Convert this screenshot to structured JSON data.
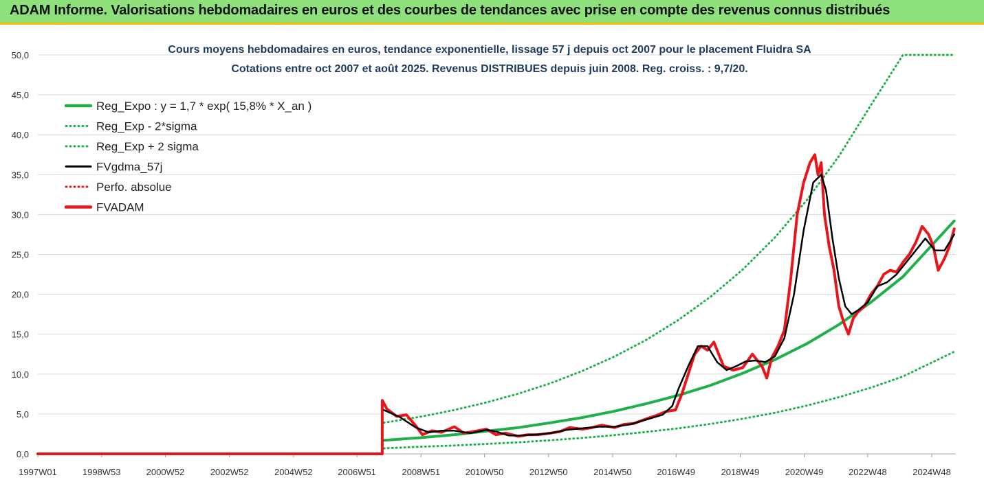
{
  "header": {
    "title": "ADAM Informe. Valorisations hebdomadaires en euros et des courbes de tendances avec prise en compte des revenus connus distribués",
    "background_color": "#8ee07a",
    "accent_color": "#f2c200"
  },
  "chart_data": {
    "type": "line",
    "title_line1": "Cours moyens hebdomadaires en euros, tendance exponentielle, lissage 57 j depuis oct 2007 pour le placement Fluidra SA",
    "title_line2": "Cotations entre oct 2007 et août 2025.  Revenus DISTRIBUES depuis juin 2008.  Reg. croiss. : 9,7/20.",
    "xlabel": "",
    "ylabel": "",
    "ylim": [
      0,
      50
    ],
    "y_ticks": [
      "0,0",
      "5,0",
      "10,0",
      "15,0",
      "20,0",
      "25,0",
      "30,0",
      "35,0",
      "40,0",
      "45,0",
      "50,0"
    ],
    "x_ticks": [
      {
        "label": "1997W01",
        "x": 1997.0
      },
      {
        "label": "1998W53",
        "x": 1998.99
      },
      {
        "label": "2000W52",
        "x": 2000.98
      },
      {
        "label": "2002W52",
        "x": 2002.98
      },
      {
        "label": "2004W52",
        "x": 2004.98
      },
      {
        "label": "2006W51",
        "x": 2006.96
      },
      {
        "label": "2008W51",
        "x": 2008.96
      },
      {
        "label": "2010W50",
        "x": 2010.94
      },
      {
        "label": "2012W50",
        "x": 2012.94
      },
      {
        "label": "2014W50",
        "x": 2014.94
      },
      {
        "label": "2016W49",
        "x": 2016.92
      },
      {
        "label": "2018W49",
        "x": 2018.92
      },
      {
        "label": "2020W49",
        "x": 2020.92
      },
      {
        "label": "2022W48",
        "x": 2022.9
      },
      {
        "label": "2024W48",
        "x": 2024.9
      }
    ],
    "xlim": [
      1997.0,
      2025.65
    ],
    "grid": true,
    "legend_position": "top-left",
    "series": [
      {
        "name": "Reg_Expo : y = 1,7 * exp( 15,8% *  X_an )",
        "kind": "curve",
        "color": "#1fb04a",
        "style": "solid",
        "x": [
          2007.8,
          2009,
          2010,
          2011,
          2012,
          2013,
          2014,
          2015,
          2016,
          2017,
          2018,
          2019,
          2020,
          2021,
          2022,
          2023,
          2024,
          2025.6
        ],
        "y": [
          1.7,
          2.05,
          2.4,
          2.85,
          3.3,
          3.9,
          4.55,
          5.35,
          6.3,
          7.35,
          8.6,
          10.1,
          11.8,
          13.8,
          16.2,
          19.0,
          22.2,
          29.2
        ]
      },
      {
        "name": "Reg_Exp - 2*sigma",
        "kind": "curve",
        "color": "#1fb04a",
        "style": "dotted",
        "x": [
          2007.8,
          2009,
          2010,
          2011,
          2012,
          2013,
          2014,
          2015,
          2016,
          2017,
          2018,
          2019,
          2020,
          2021,
          2022,
          2023,
          2024,
          2025.6
        ],
        "y": [
          0.7,
          0.9,
          1.05,
          1.25,
          1.45,
          1.7,
          2.0,
          2.35,
          2.75,
          3.2,
          3.75,
          4.4,
          5.15,
          6.05,
          7.1,
          8.3,
          9.7,
          12.8
        ]
      },
      {
        "name": "Reg_Exp + 2 sigma",
        "kind": "curve",
        "color": "#1fb04a",
        "style": "dotted",
        "x": [
          2007.8,
          2009,
          2010,
          2011,
          2012,
          2013,
          2014,
          2015,
          2016,
          2017,
          2018,
          2019,
          2020,
          2021,
          2022,
          2023,
          2024,
          2025.6
        ],
        "y": [
          3.9,
          4.7,
          5.5,
          6.45,
          7.55,
          8.85,
          10.4,
          12.2,
          14.3,
          16.8,
          19.7,
          23.1,
          27.1,
          31.8,
          37.3,
          43.7,
          50.0,
          50.0
        ]
      },
      {
        "name": "FVgdma_57j",
        "kind": "curve",
        "color": "#000000",
        "style": "solid",
        "x": [
          2007.8,
          2008.3,
          2008.8,
          2009.2,
          2009.6,
          2010.0,
          2010.5,
          2011.0,
          2011.3,
          2011.7,
          2012.0,
          2012.5,
          2013.0,
          2013.5,
          2014.0,
          2014.5,
          2015.0,
          2015.5,
          2016.0,
          2016.5,
          2016.8,
          2017.0,
          2017.3,
          2017.6,
          2017.9,
          2018.2,
          2018.5,
          2018.8,
          2019.1,
          2019.4,
          2019.7,
          2020.0,
          2020.3,
          2020.6,
          2020.9,
          2021.2,
          2021.45,
          2021.6,
          2021.8,
          2022.0,
          2022.2,
          2022.4,
          2022.6,
          2022.9,
          2023.2,
          2023.5,
          2023.8,
          2024.1,
          2024.4,
          2024.7,
          2025.0,
          2025.3,
          2025.6
        ],
        "y": [
          5.5,
          4.6,
          3.3,
          2.7,
          2.9,
          2.9,
          2.6,
          3.0,
          2.8,
          2.3,
          2.3,
          2.4,
          2.6,
          3.0,
          3.2,
          3.4,
          3.4,
          3.7,
          4.3,
          4.9,
          6.0,
          8.2,
          11.0,
          13.5,
          13.5,
          11.5,
          10.5,
          11.0,
          11.6,
          11.7,
          11.5,
          12.2,
          14.5,
          20.0,
          28.0,
          34.0,
          35.0,
          33.0,
          27.0,
          22.0,
          18.5,
          17.5,
          18.0,
          19.0,
          21.0,
          21.5,
          22.5,
          24.0,
          25.5,
          27.0,
          25.5,
          25.5,
          27.5
        ]
      },
      {
        "name": "Perfo. absolue",
        "kind": "curve",
        "color": "#e8161b",
        "style": "dotted",
        "x": [
          1997.0,
          2007.75,
          2007.75,
          2007.9,
          2008.2,
          2008.5,
          2008.8,
          2009.0,
          2009.3,
          2009.6,
          2010.0,
          2010.3,
          2010.6,
          2011.0,
          2011.3,
          2011.6,
          2012.0,
          2012.3,
          2012.6,
          2013.0,
          2013.3,
          2013.6,
          2014.0,
          2014.3,
          2014.6,
          2015.0,
          2015.3,
          2015.6,
          2016.0,
          2016.3,
          2016.6,
          2016.9,
          2017.1,
          2017.3,
          2017.5,
          2017.7,
          2017.9,
          2018.1,
          2018.4,
          2018.7,
          2019.0,
          2019.3,
          2019.6,
          2019.75,
          2019.9,
          2020.1,
          2020.3,
          2020.5,
          2020.7,
          2020.9,
          2021.1,
          2021.25,
          2021.35,
          2021.45,
          2021.55,
          2021.7,
          2021.85,
          2022.0,
          2022.15,
          2022.3,
          2022.45,
          2022.6,
          2022.8,
          2023.0,
          2023.2,
          2023.4,
          2023.6,
          2023.8,
          2024.0,
          2024.2,
          2024.4,
          2024.6,
          2024.8,
          2024.95,
          2025.1,
          2025.3,
          2025.45,
          2025.6
        ],
        "y": [
          0.0,
          0.0,
          6.7,
          5.6,
          4.7,
          4.9,
          3.5,
          2.4,
          2.9,
          2.7,
          3.4,
          2.6,
          2.8,
          3.1,
          2.4,
          2.6,
          2.2,
          2.4,
          2.4,
          2.6,
          2.8,
          3.3,
          3.1,
          3.3,
          3.6,
          3.3,
          3.7,
          3.8,
          4.4,
          4.8,
          5.3,
          5.5,
          7.5,
          10.0,
          12.5,
          13.5,
          13.0,
          14.0,
          11.0,
          10.5,
          10.8,
          12.5,
          11.0,
          9.5,
          12.0,
          13.5,
          15.5,
          22.0,
          30.0,
          34.0,
          36.5,
          37.5,
          35.0,
          36.5,
          30.0,
          26.0,
          23.0,
          18.5,
          16.5,
          15.0,
          17.0,
          17.8,
          18.5,
          20.0,
          21.0,
          22.5,
          23.0,
          22.8,
          24.0,
          25.0,
          26.5,
          28.5,
          27.5,
          26.0,
          23.0,
          24.5,
          26.0,
          28.2
        ]
      },
      {
        "name": "FVADAM",
        "kind": "curve",
        "color": "#e8161b",
        "style": "solid",
        "x": [
          1997.0,
          2007.75,
          2007.75,
          2007.9,
          2008.2,
          2008.5,
          2008.8,
          2009.0,
          2009.3,
          2009.6,
          2010.0,
          2010.3,
          2010.6,
          2011.0,
          2011.3,
          2011.6,
          2012.0,
          2012.3,
          2012.6,
          2013.0,
          2013.3,
          2013.6,
          2014.0,
          2014.3,
          2014.6,
          2015.0,
          2015.3,
          2015.6,
          2016.0,
          2016.3,
          2016.6,
          2016.9,
          2017.1,
          2017.3,
          2017.5,
          2017.7,
          2017.9,
          2018.1,
          2018.4,
          2018.7,
          2019.0,
          2019.3,
          2019.6,
          2019.75,
          2019.9,
          2020.1,
          2020.3,
          2020.5,
          2020.7,
          2020.9,
          2021.1,
          2021.25,
          2021.35,
          2021.45,
          2021.55,
          2021.7,
          2021.85,
          2022.0,
          2022.15,
          2022.3,
          2022.45,
          2022.6,
          2022.8,
          2023.0,
          2023.2,
          2023.4,
          2023.6,
          2023.8,
          2024.0,
          2024.2,
          2024.4,
          2024.6,
          2024.8,
          2024.95,
          2025.1,
          2025.3,
          2025.45,
          2025.6
        ],
        "y": [
          0.0,
          0.0,
          6.7,
          5.6,
          4.7,
          4.9,
          3.5,
          2.4,
          2.9,
          2.7,
          3.4,
          2.6,
          2.8,
          3.1,
          2.4,
          2.6,
          2.2,
          2.4,
          2.4,
          2.6,
          2.8,
          3.3,
          3.1,
          3.3,
          3.6,
          3.3,
          3.7,
          3.8,
          4.4,
          4.8,
          5.3,
          5.5,
          7.5,
          10.0,
          12.5,
          13.5,
          13.0,
          14.0,
          11.0,
          10.5,
          10.8,
          12.5,
          11.0,
          9.5,
          12.0,
          13.5,
          15.5,
          22.0,
          30.0,
          34.0,
          36.5,
          37.5,
          35.0,
          36.5,
          30.0,
          26.0,
          23.0,
          18.5,
          16.5,
          15.0,
          17.0,
          17.8,
          18.5,
          20.0,
          21.0,
          22.5,
          23.0,
          22.8,
          24.0,
          25.0,
          26.5,
          28.5,
          27.5,
          26.0,
          23.0,
          24.5,
          26.0,
          28.2
        ]
      }
    ]
  }
}
